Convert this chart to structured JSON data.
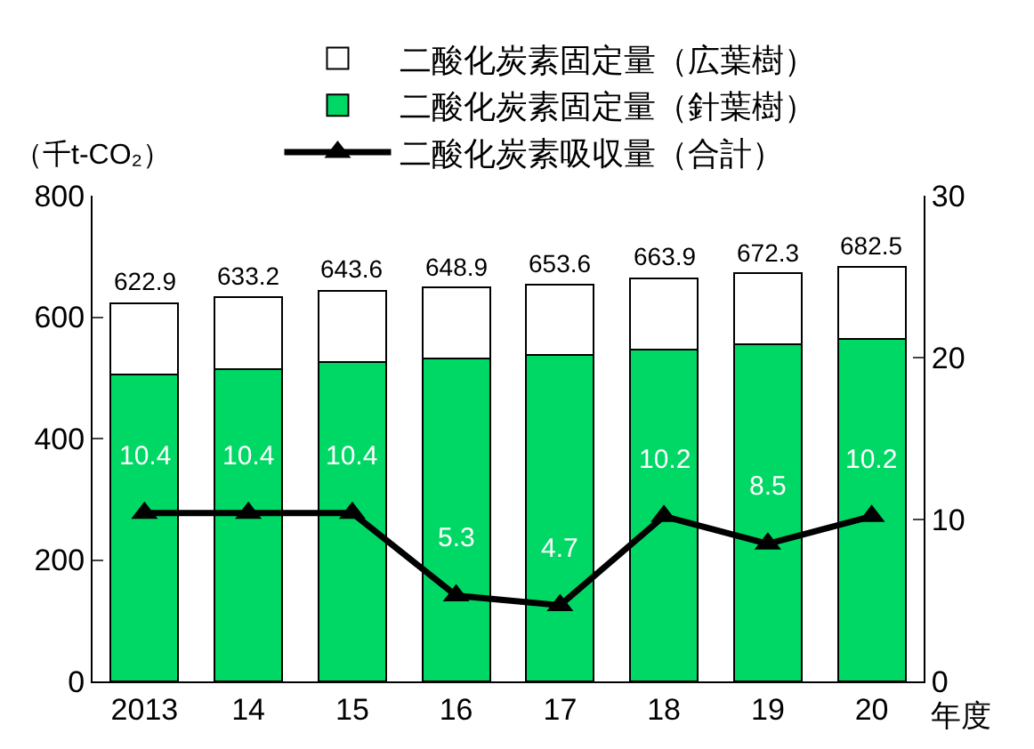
{
  "chart_data": {
    "type": "bar",
    "stacked": true,
    "ylabel": "（千t-CO₂）",
    "xlabel": "年度",
    "categories": [
      "2013",
      "14",
      "15",
      "16",
      "17",
      "18",
      "19",
      "20"
    ],
    "series": [
      {
        "name": "二酸化炭素固定量（針葉樹）",
        "color": "#00d865",
        "values": [
          506,
          515,
          526,
          532,
          538,
          546,
          555,
          564
        ]
      },
      {
        "name": "二酸化炭素固定量（広葉樹）",
        "color": "#ffffff",
        "values": [
          116.9,
          118.2,
          117.6,
          116.9,
          115.6,
          117.9,
          117.3,
          118.5
        ]
      },
      {
        "name": "二酸化炭素吸収量（合計）",
        "type": "line",
        "axis": "y2",
        "color": "#000000",
        "marker": "triangle",
        "values": [
          10.4,
          10.4,
          10.4,
          5.3,
          4.7,
          10.2,
          8.5,
          10.2
        ],
        "value_labels": [
          "10.4",
          "10.4",
          "10.4",
          "5.3",
          "4.7",
          "10.2",
          "8.5",
          "10.2"
        ]
      }
    ],
    "totals": [
      "622.9",
      "633.2",
      "643.6",
      "648.9",
      "653.6",
      "663.9",
      "672.3",
      "682.5"
    ],
    "ylim": [
      0,
      800
    ],
    "yticks": [
      0,
      200,
      400,
      600,
      800
    ],
    "y2lim": [
      0,
      30
    ],
    "y2ticks": [
      0,
      10,
      20,
      30
    ],
    "grid": false,
    "legend": "top"
  }
}
